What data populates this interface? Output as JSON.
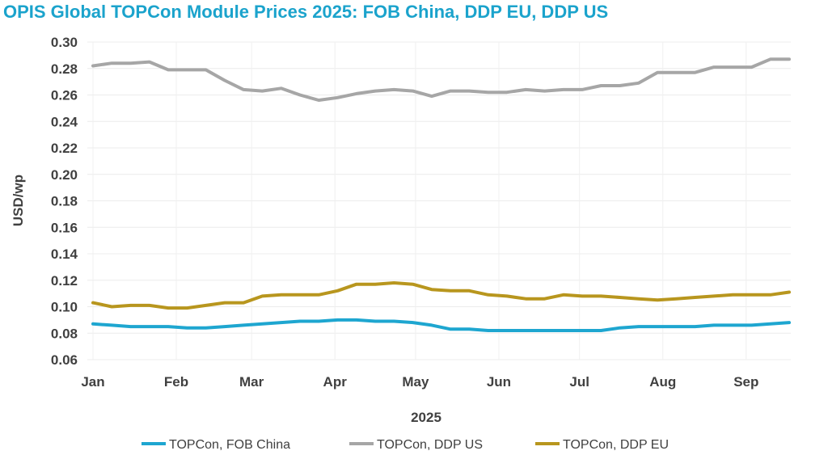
{
  "chart_data": {
    "type": "line",
    "title": "OPIS Global TOPCon Module Prices 2025: FOB China, DDP EU, DDP US",
    "xlabel": "2025",
    "ylabel": "USD/wp",
    "ylim": [
      0.06,
      0.3
    ],
    "yticks": [
      "0.06",
      "0.08",
      "0.10",
      "0.12",
      "0.14",
      "0.16",
      "0.18",
      "0.20",
      "0.22",
      "0.24",
      "0.26",
      "0.28",
      "0.30"
    ],
    "xlim": [
      "2025-01-01",
      "2025-09-17"
    ],
    "xticks": [
      {
        "label": "Jan",
        "date": "2025-01-01"
      },
      {
        "label": "Feb",
        "date": "2025-02-01"
      },
      {
        "label": "Mar",
        "date": "2025-03-01"
      },
      {
        "label": "Apr",
        "date": "2025-04-01"
      },
      {
        "label": "May",
        "date": "2025-05-01"
      },
      {
        "label": "Jun",
        "date": "2025-06-01"
      },
      {
        "label": "Jul",
        "date": "2025-07-01"
      },
      {
        "label": "Aug",
        "date": "2025-08-01"
      },
      {
        "label": "Sep",
        "date": "2025-09-01"
      }
    ],
    "grid": true,
    "legend_position": "bottom",
    "x_start": "2025-01-01",
    "x_interval": "weekly",
    "series": [
      {
        "name": "TOPCon, FOB China",
        "color": "#1ea6d0",
        "values": [
          0.087,
          0.086,
          0.085,
          0.085,
          0.085,
          0.084,
          0.084,
          0.085,
          0.086,
          0.087,
          0.088,
          0.089,
          0.089,
          0.09,
          0.09,
          0.089,
          0.089,
          0.088,
          0.086,
          0.083,
          0.083,
          0.082,
          0.082,
          0.082,
          0.082,
          0.082,
          0.082,
          0.082,
          0.084,
          0.085,
          0.085,
          0.085,
          0.085,
          0.086,
          0.086,
          0.086,
          0.087,
          0.088
        ]
      },
      {
        "name": "TOPCon, DDP US",
        "color": "#a6a6a6",
        "values": [
          0.282,
          0.284,
          0.284,
          0.285,
          0.279,
          0.279,
          0.279,
          0.271,
          0.264,
          0.263,
          0.265,
          0.26,
          0.256,
          0.258,
          0.261,
          0.263,
          0.264,
          0.263,
          0.259,
          0.263,
          0.263,
          0.262,
          0.262,
          0.264,
          0.263,
          0.264,
          0.264,
          0.267,
          0.267,
          0.269,
          0.277,
          0.277,
          0.277,
          0.281,
          0.281,
          0.281,
          0.287,
          0.287
        ]
      },
      {
        "name": "TOPCon, DDP EU",
        "color": "#b8961e",
        "values": [
          0.103,
          0.1,
          0.101,
          0.101,
          0.099,
          0.099,
          0.101,
          0.103,
          0.103,
          0.108,
          0.109,
          0.109,
          0.109,
          0.112,
          0.117,
          0.117,
          0.118,
          0.117,
          0.113,
          0.112,
          0.112,
          0.109,
          0.108,
          0.106,
          0.106,
          0.109,
          0.108,
          0.108,
          0.107,
          0.106,
          0.105,
          0.106,
          0.107,
          0.108,
          0.109,
          0.109,
          0.109,
          0.111
        ]
      }
    ]
  }
}
